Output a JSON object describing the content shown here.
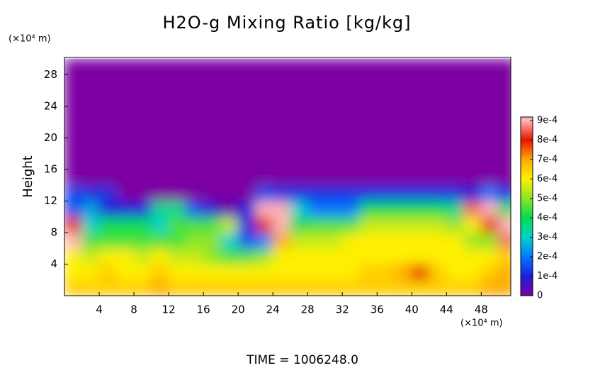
{
  "chart_data": {
    "type": "heatmap",
    "title": "H2O-g Mixing Ratio [kg/kg]",
    "ylabel": "Height",
    "y_unit": "(×10⁴ m)",
    "x_unit": "(×10⁴ m)",
    "footer": "TIME = 1006248.0",
    "xlim": [
      0,
      51.4
    ],
    "ylim": [
      0,
      30.2
    ],
    "xticks": [
      4,
      8,
      12,
      16,
      20,
      24,
      28,
      32,
      36,
      40,
      44,
      48
    ],
    "yticks": [
      4,
      8,
      12,
      16,
      20,
      24,
      28
    ],
    "x": [
      1,
      3,
      5,
      7,
      9,
      11,
      13,
      15,
      17,
      19,
      21,
      23,
      25,
      27,
      29,
      31,
      33,
      35,
      37,
      39,
      41,
      43,
      45,
      47,
      49,
      51
    ],
    "y": [
      1,
      3,
      5,
      7,
      9,
      11,
      13,
      15,
      17,
      19,
      21,
      23,
      25,
      27,
      29
    ],
    "z": [
      [
        0.00065,
        0.00065,
        0.00065,
        0.00065,
        0.00065,
        0.0007,
        0.00065,
        0.00065,
        0.00065,
        0.00065,
        0.00065,
        0.00065,
        0.00065,
        0.00065,
        0.00065,
        0.00065,
        0.00065,
        0.00065,
        0.00065,
        0.00065,
        0.00065,
        0.00065,
        0.00065,
        0.00065,
        0.0007,
        0.0007
      ],
      [
        0.0006,
        0.0006,
        0.00065,
        0.0006,
        0.0006,
        0.00065,
        0.0006,
        0.0006,
        0.0006,
        0.0006,
        0.0006,
        0.0006,
        0.0006,
        0.0006,
        0.0006,
        0.0006,
        0.0006,
        0.00065,
        0.00065,
        0.0007,
        0.0008,
        0.00065,
        0.0006,
        0.0006,
        0.00065,
        0.0007
      ],
      [
        0.0006,
        0.00055,
        0.0006,
        0.0006,
        0.00055,
        0.0006,
        0.00055,
        0.00055,
        0.0005,
        0.00045,
        0.00045,
        0.0005,
        0.0006,
        0.0006,
        0.0006,
        0.0006,
        0.0006,
        0.0006,
        0.0006,
        0.0006,
        0.0006,
        0.0006,
        0.0006,
        0.0006,
        0.0006,
        0.00065
      ],
      [
        0.0009,
        0.00045,
        0.00045,
        0.00045,
        0.00045,
        0.00045,
        0.00045,
        0.0005,
        0.0005,
        0.0003,
        0.00015,
        0.0002,
        0.0007,
        0.00055,
        0.00055,
        0.00055,
        0.0006,
        0.0006,
        0.0006,
        0.0006,
        0.0006,
        0.0006,
        0.0006,
        0.0005,
        0.0005,
        0.00085
      ],
      [
        0.0008,
        0.0003,
        0.0004,
        0.0004,
        0.0004,
        0.0003,
        0.00045,
        0.00045,
        0.00045,
        0.00055,
        0.0001,
        0.0008,
        0.0009,
        0.0004,
        0.00045,
        0.00045,
        0.00045,
        0.00055,
        0.00055,
        0.00055,
        0.00055,
        0.00055,
        0.0005,
        0.0006,
        0.0008,
        0.0009
      ],
      [
        0.00015,
        0.00025,
        0.0001,
        0.0001,
        0.0001,
        0.00035,
        0.00035,
        0.00015,
        8e-05,
        2e-05,
        0.0001,
        0.0009,
        0.0009,
        0.0003,
        0.0002,
        0.0002,
        0.0002,
        0.0004,
        0.0004,
        0.0004,
        0.0004,
        0.0004,
        0.00035,
        0.00085,
        0.0009,
        0.0004
      ],
      [
        0.00015,
        0.00012,
        0.00012,
        0,
        0,
        0,
        0,
        0,
        0,
        0,
        0,
        0.00015,
        0.00012,
        0.00012,
        0.00012,
        0.00012,
        0.00012,
        0.00012,
        0.00012,
        0.00012,
        0.00012,
        0.00012,
        0.00012,
        8e-05,
        0.0002,
        0.0001
      ],
      [
        0,
        0,
        0,
        0,
        0,
        0,
        0,
        0,
        0,
        0,
        0,
        0,
        0,
        0,
        0,
        0,
        0,
        0,
        0,
        0,
        0,
        0,
        0,
        0,
        0,
        0
      ],
      [
        0,
        0,
        0,
        0,
        0,
        0,
        0,
        0,
        0,
        0,
        0,
        0,
        0,
        0,
        0,
        0,
        0,
        0,
        0,
        0,
        0,
        0,
        0,
        0,
        0,
        0
      ],
      [
        0,
        0,
        0,
        0,
        0,
        0,
        0,
        0,
        0,
        0,
        0,
        0,
        0,
        0,
        0,
        0,
        0,
        0,
        0,
        0,
        0,
        0,
        0,
        0,
        0,
        0
      ],
      [
        0,
        0,
        0,
        0,
        0,
        0,
        0,
        0,
        0,
        0,
        0,
        0,
        0,
        0,
        0,
        0,
        0,
        0,
        0,
        0,
        0,
        0,
        0,
        0,
        0,
        0
      ],
      [
        0,
        0,
        0,
        0,
        0,
        0,
        0,
        0,
        0,
        0,
        0,
        0,
        0,
        0,
        0,
        0,
        0,
        0,
        0,
        0,
        0,
        0,
        0,
        0,
        0,
        0
      ],
      [
        0,
        0,
        0,
        0,
        0,
        0,
        0,
        0,
        0,
        0,
        0,
        0,
        0,
        0,
        0,
        0,
        0,
        0,
        0,
        0,
        0,
        0,
        0,
        0,
        0,
        0
      ],
      [
        0,
        0,
        0,
        0,
        0,
        0,
        0,
        0,
        0,
        0,
        0,
        0,
        0,
        0,
        0,
        0,
        0,
        0,
        0,
        0,
        0,
        0,
        0,
        0,
        0,
        0
      ],
      [
        0,
        0,
        0,
        0,
        0,
        0,
        0,
        0,
        0,
        0,
        0,
        0,
        0,
        0,
        0,
        0,
        0,
        0,
        0,
        0,
        0,
        0,
        0,
        0,
        0,
        0
      ]
    ],
    "clim": [
      0,
      0.0009
    ],
    "cticks": [
      {
        "value": 0,
        "label": "0"
      },
      {
        "value": 0.0001,
        "label": "1e-4"
      },
      {
        "value": 0.0002,
        "label": "2e-4"
      },
      {
        "value": 0.0003,
        "label": "3e-4"
      },
      {
        "value": 0.0004,
        "label": "4e-4"
      },
      {
        "value": 0.0005,
        "label": "5e-4"
      },
      {
        "value": 0.0006,
        "label": "6e-4"
      },
      {
        "value": 0.0007,
        "label": "7e-4"
      },
      {
        "value": 0.0008,
        "label": "8e-4"
      },
      {
        "value": 0.0009,
        "label": "9e-4"
      }
    ],
    "colormap": [
      "#7b00a3",
      "#1e1edc",
      "#0078ff",
      "#00d2c8",
      "#00dc50",
      "#8ce628",
      "#fff000",
      "#ffaa00",
      "#e61400",
      "#ffb4b4"
    ]
  }
}
